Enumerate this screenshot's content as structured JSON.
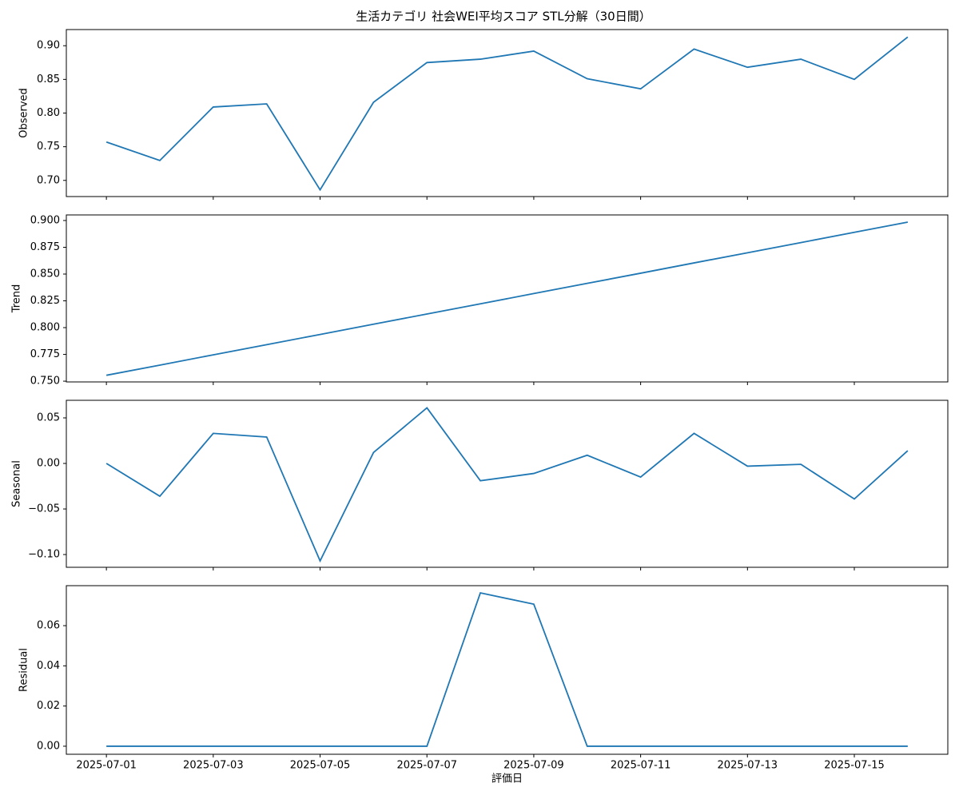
{
  "chart_data": [
    {
      "type": "line",
      "title": "生活カテゴリ 社会WEI平均スコア STL分解（30日間）",
      "ylabel": "Observed",
      "x": [
        "2025-07-01",
        "2025-07-02",
        "2025-07-03",
        "2025-07-04",
        "2025-07-05",
        "2025-07-06",
        "2025-07-07",
        "2025-07-08",
        "2025-07-09",
        "2025-07-10",
        "2025-07-11",
        "2025-07-12",
        "2025-07-13",
        "2025-07-14",
        "2025-07-15",
        "2025-07-16"
      ],
      "xticks": [
        "2025-07-01",
        "2025-07-03",
        "2025-07-05",
        "2025-07-07",
        "2025-07-09",
        "2025-07-11",
        "2025-07-13",
        "2025-07-15"
      ],
      "series": [
        {
          "name": "Observed",
          "color": "#1f77b4",
          "values": [
            0.757,
            0.7296,
            0.809,
            0.8136,
            0.686,
            0.816,
            0.875,
            0.88,
            0.892,
            0.851,
            0.836,
            0.895,
            0.868,
            0.88,
            0.85,
            0.913
          ]
        }
      ],
      "ylim": [
        0.676,
        0.924
      ],
      "yticks": [
        {
          "value": 0.7,
          "label": "0.70"
        },
        {
          "value": 0.75,
          "label": "0.75"
        },
        {
          "value": 0.8,
          "label": "0.80"
        },
        {
          "value": 0.85,
          "label": "0.85"
        },
        {
          "value": 0.9,
          "label": "0.90"
        }
      ]
    },
    {
      "type": "line",
      "ylabel": "Trend",
      "x": [
        "2025-07-01",
        "2025-07-02",
        "2025-07-03",
        "2025-07-04",
        "2025-07-05",
        "2025-07-06",
        "2025-07-07",
        "2025-07-08",
        "2025-07-09",
        "2025-07-10",
        "2025-07-11",
        "2025-07-12",
        "2025-07-13",
        "2025-07-14",
        "2025-07-15",
        "2025-07-16"
      ],
      "xticks": [
        "2025-07-01",
        "2025-07-03",
        "2025-07-05",
        "2025-07-07",
        "2025-07-09",
        "2025-07-11",
        "2025-07-13",
        "2025-07-15"
      ],
      "series": [
        {
          "name": "Trend",
          "color": "#1f77b4",
          "values": [
            0.7555,
            0.765,
            0.7746,
            0.7841,
            0.7936,
            0.8032,
            0.8127,
            0.8222,
            0.8318,
            0.8413,
            0.8508,
            0.8604,
            0.8699,
            0.8794,
            0.889,
            0.8985
          ]
        }
      ],
      "ylim": [
        0.7493,
        0.9052
      ],
      "yticks": [
        {
          "value": 0.75,
          "label": "0.750"
        },
        {
          "value": 0.775,
          "label": "0.775"
        },
        {
          "value": 0.8,
          "label": "0.800"
        },
        {
          "value": 0.825,
          "label": "0.825"
        },
        {
          "value": 0.85,
          "label": "0.850"
        },
        {
          "value": 0.875,
          "label": "0.875"
        },
        {
          "value": 0.9,
          "label": "0.900"
        }
      ]
    },
    {
      "type": "line",
      "ylabel": "Seasonal",
      "x": [
        "2025-07-01",
        "2025-07-02",
        "2025-07-03",
        "2025-07-04",
        "2025-07-05",
        "2025-07-06",
        "2025-07-07",
        "2025-07-08",
        "2025-07-09",
        "2025-07-10",
        "2025-07-11",
        "2025-07-12",
        "2025-07-13",
        "2025-07-14",
        "2025-07-15",
        "2025-07-16"
      ],
      "xticks": [
        "2025-07-01",
        "2025-07-03",
        "2025-07-05",
        "2025-07-07",
        "2025-07-09",
        "2025-07-11",
        "2025-07-13",
        "2025-07-15"
      ],
      "series": [
        {
          "name": "Seasonal",
          "color": "#1f77b4",
          "values": [
            0.0,
            -0.036,
            0.033,
            0.029,
            -0.107,
            0.012,
            0.061,
            -0.019,
            -0.011,
            0.009,
            -0.015,
            0.033,
            -0.003,
            -0.001,
            -0.039,
            0.014
          ]
        }
      ],
      "ylim": [
        -0.114,
        0.0693
      ],
      "yticks": [
        {
          "value": -0.1,
          "label": "−0.10"
        },
        {
          "value": -0.05,
          "label": "−0.05"
        },
        {
          "value": 0,
          "label": "0.00"
        },
        {
          "value": 0.05,
          "label": "0.05"
        }
      ]
    },
    {
      "type": "line",
      "ylabel": "Residual",
      "xlabel": "評価日",
      "x": [
        "2025-07-01",
        "2025-07-02",
        "2025-07-03",
        "2025-07-04",
        "2025-07-05",
        "2025-07-06",
        "2025-07-07",
        "2025-07-08",
        "2025-07-09",
        "2025-07-10",
        "2025-07-11",
        "2025-07-12",
        "2025-07-13",
        "2025-07-14",
        "2025-07-15",
        "2025-07-16"
      ],
      "xticks": [
        "2025-07-01",
        "2025-07-03",
        "2025-07-05",
        "2025-07-07",
        "2025-07-09",
        "2025-07-11",
        "2025-07-13",
        "2025-07-15"
      ],
      "series": [
        {
          "name": "Residual",
          "color": "#1f77b4",
          "values": [
            0,
            0,
            0,
            0,
            0,
            0,
            0,
            0.0763,
            0.0707,
            0,
            0,
            0,
            0,
            0,
            0,
            0
          ]
        }
      ],
      "ylim": [
        -0.004,
        0.0799
      ],
      "yticks": [
        {
          "value": 0,
          "label": "0.00"
        },
        {
          "value": 0.02,
          "label": "0.02"
        },
        {
          "value": 0.04,
          "label": "0.04"
        },
        {
          "value": 0.06,
          "label": "0.06"
        }
      ]
    }
  ]
}
